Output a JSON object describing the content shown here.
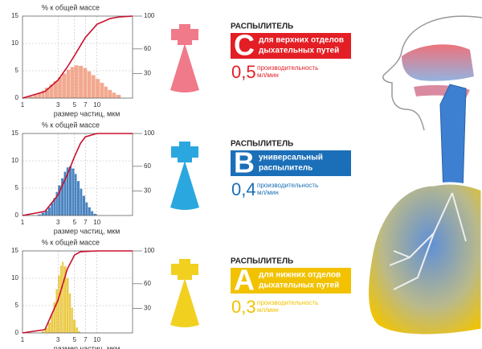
{
  "chart_data": [
    {
      "type": "histogram",
      "ylabel": "% к общей массе",
      "xlabel": "размер частиц, мкм",
      "log_x": true,
      "grid": true,
      "xlim": [
        1,
        30
      ],
      "xticks": [
        1,
        3,
        5,
        7,
        10
      ],
      "ylim": [
        0,
        15
      ],
      "yticks": [
        0,
        5,
        10,
        15
      ],
      "y2lim": [
        0,
        100
      ],
      "y2ticks": [
        30,
        60,
        100
      ],
      "color": "#f09a7c",
      "bins": [
        1.2,
        1.4,
        1.6,
        1.8,
        2,
        2.3,
        2.6,
        3,
        3.4,
        3.9,
        4.4,
        5,
        5.7,
        6.5,
        7.4,
        8.4,
        9.6,
        11,
        12.5,
        14,
        16,
        18,
        21
      ],
      "counts": [
        0.3,
        0.6,
        1,
        1.4,
        1.9,
        2.5,
        3.1,
        3.8,
        4.5,
        5.2,
        5.7,
        6,
        5.9,
        5.5,
        4.9,
        4.2,
        3.5,
        2.8,
        2.1,
        1.5,
        1,
        0.6
      ],
      "curve": {
        "color": "#c8102e",
        "axis": "y2",
        "x": [
          1,
          2,
          3,
          4,
          5,
          6,
          7,
          10,
          15,
          20,
          30
        ],
        "values": [
          0,
          8,
          22,
          38,
          52,
          64,
          74,
          90,
          97,
          99,
          100
        ]
      }
    },
    {
      "type": "histogram",
      "ylabel": "% к общей массе",
      "xlabel": "размер частиц, мкм",
      "log_x": true,
      "grid": true,
      "xlim": [
        1,
        30
      ],
      "xticks": [
        1,
        3,
        5,
        7,
        10
      ],
      "ylim": [
        0,
        15
      ],
      "yticks": [
        0,
        5,
        10,
        15
      ],
      "y2lim": [
        0,
        100
      ],
      "y2ticks": [
        30,
        60,
        100
      ],
      "color": "#2a6fb5",
      "bins": [
        1.6,
        1.8,
        2,
        2.2,
        2.4,
        2.6,
        2.8,
        3,
        3.3,
        3.6,
        3.9,
        4.2,
        4.6,
        5,
        5.4,
        5.9,
        6.4,
        7,
        7.6,
        8.3,
        9,
        10
      ],
      "counts": [
        0.2,
        0.5,
        0.9,
        1.5,
        2.3,
        3.2,
        4.3,
        5.5,
        6.8,
        8,
        8.8,
        9,
        8.6,
        7.6,
        6.3,
        4.9,
        3.6,
        2.4,
        1.5,
        0.8,
        0.3
      ],
      "curve": {
        "color": "#c8102e",
        "axis": "y2",
        "x": [
          1,
          2,
          3,
          4,
          5,
          6,
          7,
          10,
          30
        ],
        "values": [
          0,
          5,
          25,
          50,
          72,
          88,
          96,
          100,
          100
        ]
      }
    },
    {
      "type": "histogram",
      "ylabel": "% к общей массе",
      "xlabel": "размер частиц, мкм",
      "log_x": true,
      "grid": true,
      "xlim": [
        1,
        30
      ],
      "xticks": [
        1,
        3,
        5,
        7,
        10
      ],
      "ylim": [
        0,
        15
      ],
      "yticks": [
        0,
        5,
        10,
        15
      ],
      "y2lim": [
        0,
        100
      ],
      "y2ticks": [
        30,
        60,
        100
      ],
      "color": "#e6bf22",
      "bins": [
        1.8,
        2,
        2.2,
        2.4,
        2.6,
        2.8,
        3,
        3.2,
        3.4,
        3.6,
        3.9,
        4.2,
        4.5,
        4.8,
        5.2,
        5.6,
        6
      ],
      "counts": [
        0.3,
        0.9,
        1.9,
        3.5,
        5.6,
        8,
        10.5,
        12.3,
        13,
        12.2,
        10,
        7.2,
        4.6,
        2.4,
        1,
        0.3
      ],
      "curve": {
        "color": "#c8102e",
        "axis": "y2",
        "x": [
          1,
          2,
          3,
          4,
          5,
          6,
          10,
          30
        ],
        "values": [
          0,
          4,
          40,
          78,
          95,
          99,
          100,
          100
        ]
      }
    }
  ],
  "nebulizers": [
    {
      "heading": "РАСПЫЛИТЕЛЬ",
      "letter": "C",
      "purpose_lines": [
        "для верхних отделов",
        "дыхательных путей"
      ],
      "rate": "0,5",
      "rate_label_lines": [
        "производительность",
        "мл/мин"
      ],
      "color": "#e31e24",
      "icon_color": "#f07a8a"
    },
    {
      "heading": "РАСПЫЛИТЕЛЬ",
      "letter": "B",
      "purpose_lines": [
        "универсальный",
        "распылитель"
      ],
      "rate": "0,4",
      "rate_label_lines": [
        "производительность",
        "мл/мин"
      ],
      "color": "#1b6fb8",
      "icon_color": "#2aa7df"
    },
    {
      "heading": "РАСПЫЛИТЕЛЬ",
      "letter": "A",
      "purpose_lines": [
        "для нижних отделов",
        "дыхательных путей"
      ],
      "rate": "0,3",
      "rate_label_lines": [
        "производительность",
        "мл/мин"
      ],
      "color": "#f2c200",
      "icon_color": "#f2d020"
    }
  ]
}
